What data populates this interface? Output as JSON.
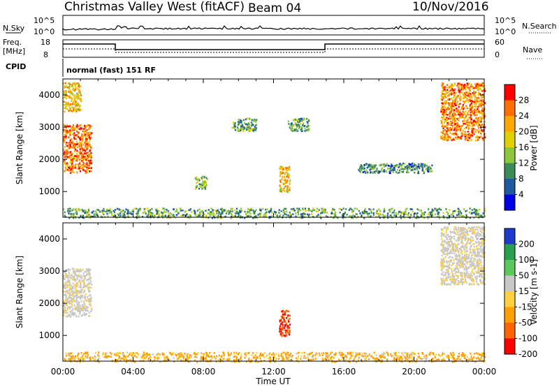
{
  "header": {
    "site": "Christmas Valley West (fitACF)",
    "beam": "Beam 04",
    "date": "10/Nov/2016"
  },
  "sky_panel": {
    "left_label": "N.Sky",
    "right_label": "N.Search",
    "left_ticks": [
      "10^5",
      "10^0"
    ],
    "right_ticks": [
      "10^5",
      "10^0"
    ]
  },
  "freq_panel": {
    "left_label_1": "Freq.",
    "left_label_2": "[MHz]",
    "right_label": "Nave",
    "left_ticks": [
      "18",
      "8"
    ],
    "right_ticks": [
      "60",
      "0"
    ],
    "cpid_label": "CPID",
    "cpid_text": "normal (fast) 151 RF"
  },
  "x_axis": {
    "title": "Time UT",
    "ticks": [
      "00:00",
      "04:00",
      "08:00",
      "12:00",
      "16:00",
      "20:00",
      "00:00"
    ]
  },
  "power_panel": {
    "ylabel": "Slant Range [km]",
    "cbar_label": "Power [dB]",
    "cbar_ticks": [
      "28",
      "24",
      "20",
      "16",
      "12",
      "8",
      "4"
    ],
    "cbar_colors": [
      "#ff0000",
      "#ff7000",
      "#ffa800",
      "#e0d000",
      "#8cc83c",
      "#3c8c5a",
      "#1e5aa0",
      "#0000e6"
    ]
  },
  "velocity_panel": {
    "ylabel": "Slant Range [km]",
    "cbar_label": "Velocity [m s-1]",
    "cbar_ticks": [
      "200",
      "100",
      "50",
      "15",
      "-15",
      "-50",
      "-100",
      "-200"
    ],
    "cbar_colors": [
      "#1e3cc8",
      "#28a050",
      "#5ac85a",
      "#c8c8c8",
      "#ffd040",
      "#ffa000",
      "#ff6400",
      "#ff0000"
    ]
  },
  "chart_data": [
    {
      "type": "heatmap",
      "title": "Power [dB]",
      "xlabel": "Time UT",
      "ylabel": "Slant Range [km]",
      "xlim": [
        "00:00",
        "24:00"
      ],
      "ylim": [
        200,
        4500
      ],
      "yticks": [
        1000,
        2000,
        3000,
        4000
      ],
      "colorbar": {
        "label": "Power [dB]",
        "range": [
          0,
          30
        ],
        "ticks": [
          4,
          8,
          12,
          16,
          20,
          24,
          28
        ]
      },
      "regions": [
        {
          "t_start": 0.0,
          "t_end": 1.6,
          "range_start": 1600,
          "range_end": 3100,
          "power_db": 25
        },
        {
          "t_start": 0.0,
          "t_end": 1.0,
          "range_start": 3500,
          "range_end": 4400,
          "power_db": 20
        },
        {
          "t_start": 7.5,
          "t_end": 8.2,
          "range_start": 1100,
          "range_end": 1500,
          "power_db": 12
        },
        {
          "t_start": 12.3,
          "t_end": 12.9,
          "range_start": 1000,
          "range_end": 1800,
          "power_db": 20
        },
        {
          "t_start": 9.6,
          "t_end": 11.0,
          "range_start": 2900,
          "range_end": 3300,
          "power_db": 10
        },
        {
          "t_start": 12.8,
          "t_end": 14.0,
          "range_start": 2900,
          "range_end": 3300,
          "power_db": 10
        },
        {
          "t_start": 16.8,
          "t_end": 21.0,
          "range_start": 1600,
          "range_end": 1900,
          "power_db": 8
        },
        {
          "t_start": 21.5,
          "t_end": 24.0,
          "range_start": 2600,
          "range_end": 4400,
          "power_db": 24
        },
        {
          "t_start": 0.0,
          "t_end": 24.0,
          "range_start": 200,
          "range_end": 500,
          "power_db": 10
        }
      ]
    },
    {
      "type": "heatmap",
      "title": "Velocity [m s-1]",
      "xlabel": "Time UT",
      "ylabel": "Slant Range [km]",
      "xlim": [
        "00:00",
        "24:00"
      ],
      "ylim": [
        200,
        4500
      ],
      "yticks": [
        1000,
        2000,
        3000,
        4000
      ],
      "colorbar": {
        "label": "Velocity [m s-1]",
        "range": [
          -200,
          200
        ],
        "ticks": [
          -200,
          -100,
          -50,
          -15,
          15,
          50,
          100,
          200
        ]
      },
      "regions": [
        {
          "t_start": 0.0,
          "t_end": 1.6,
          "range_start": 1600,
          "range_end": 3100,
          "velocity": 0
        },
        {
          "t_start": 12.3,
          "t_end": 12.9,
          "range_start": 1000,
          "range_end": 1800,
          "velocity": -150
        },
        {
          "t_start": 21.5,
          "t_end": 24.0,
          "range_start": 2600,
          "range_end": 4400,
          "velocity": 0
        },
        {
          "t_start": 0.0,
          "t_end": 24.0,
          "range_start": 200,
          "range_end": 500,
          "velocity": -40
        }
      ]
    }
  ]
}
